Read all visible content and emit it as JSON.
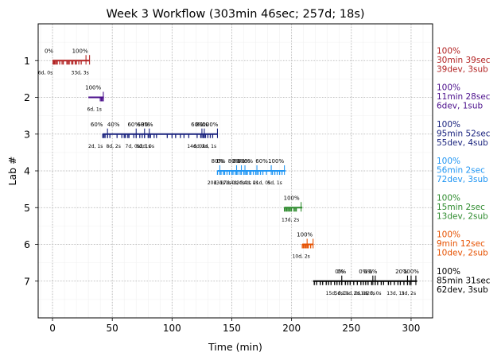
{
  "chart_data": {
    "type": "timeline",
    "title": "Week 3 Workflow (303min 46sec; 257d; 18s)",
    "xlabel": "Time (min)",
    "ylabel": "Lab #",
    "xlim": [
      -12,
      318
    ],
    "ylim": [
      8,
      0
    ],
    "xticks": [
      0,
      50,
      100,
      150,
      200,
      250,
      300
    ],
    "yticks": [
      1,
      2,
      3,
      4,
      5,
      6,
      7
    ],
    "grid": true,
    "labs": [
      {
        "lab": 1,
        "color": "#b22222",
        "start": 0,
        "end": 31,
        "ticks": [
          0.5,
          1.2,
          2,
          3,
          4,
          6,
          8,
          9,
          12,
          13,
          14,
          16,
          17,
          19,
          20,
          22,
          24
        ],
        "submissions": [
          28,
          31
        ],
        "pct_labels": [
          {
            "x": -3,
            "text": "0%"
          },
          {
            "x": 23,
            "text": "100%"
          }
        ],
        "count_labels": [
          {
            "x": -6,
            "text": "6d, 0s"
          },
          {
            "x": 23,
            "text": "33d, 3s"
          }
        ],
        "summary": [
          "100%",
          "30min 39sec",
          "39dev, 3sub"
        ]
      },
      {
        "lab": 2,
        "color": "#4b0f8c",
        "start": 30,
        "end": 43,
        "ticks": [
          40,
          41,
          42
        ],
        "submissions": [
          42.5
        ],
        "pct_labels": [
          {
            "x": 34,
            "text": "100%"
          }
        ],
        "count_labels": [
          {
            "x": 35,
            "text": "6d, 1s"
          }
        ],
        "summary": [
          "100%",
          "11min 28sec",
          "6dev, 1sub"
        ]
      },
      {
        "lab": 3,
        "color": "#1a237e",
        "start": 42,
        "end": 138,
        "ticks": [
          42,
          43,
          44,
          46,
          48,
          54,
          58,
          60,
          61,
          63,
          64,
          68,
          70,
          73,
          75,
          77,
          80,
          82,
          85,
          87,
          96,
          100,
          103,
          107,
          110,
          114,
          121,
          124,
          126,
          127,
          128,
          130,
          132,
          134
        ],
        "submissions": [
          46,
          70,
          77,
          81,
          125,
          127,
          138
        ],
        "pct_labels": [
          {
            "x": 37,
            "text": "60%"
          },
          {
            "x": 51,
            "text": "40%"
          },
          {
            "x": 68,
            "text": "60%"
          },
          {
            "x": 76,
            "text": "60%"
          },
          {
            "x": 79,
            "text": "80%"
          },
          {
            "x": 121,
            "text": "60%"
          },
          {
            "x": 125,
            "text": "80%"
          },
          {
            "x": 132,
            "text": "100%"
          }
        ],
        "count_labels": [
          {
            "x": 36,
            "text": "2d, 1s"
          },
          {
            "x": 51,
            "text": "8d, 2s"
          },
          {
            "x": 67,
            "text": "7d, 0s"
          },
          {
            "x": 76,
            "text": "6d, 1s"
          },
          {
            "x": 79,
            "text": "2d, 0s"
          },
          {
            "x": 120,
            "text": "14d, 0s"
          },
          {
            "x": 124,
            "text": "6d, 1s"
          },
          {
            "x": 131,
            "text": "2d, 1s"
          }
        ],
        "summary": [
          "100%",
          "95min 52sec",
          "55dev, 4sub"
        ]
      },
      {
        "lab": 4,
        "color": "#2196f3",
        "start": 138,
        "end": 195,
        "ticks": [
          138,
          140,
          141,
          143,
          144,
          146,
          148,
          150,
          151,
          153,
          155,
          157,
          160,
          162,
          163,
          165,
          166,
          168,
          170,
          172,
          174,
          176,
          179,
          184,
          186,
          188,
          190,
          192
        ],
        "submissions": [
          140,
          154,
          158,
          161,
          171,
          183,
          194
        ],
        "pct_labels": [
          {
            "x": 138,
            "text": "80%"
          },
          {
            "x": 141,
            "text": "0%"
          },
          {
            "x": 152,
            "text": "80%"
          },
          {
            "x": 156,
            "text": "80%"
          },
          {
            "x": 160,
            "text": "80%"
          },
          {
            "x": 164,
            "text": "0%"
          },
          {
            "x": 175,
            "text": "60%"
          },
          {
            "x": 187,
            "text": "100%"
          }
        ],
        "count_labels": [
          {
            "x": 137,
            "text": "20d, 1s"
          },
          {
            "x": 142,
            "text": "13d, 1s"
          },
          {
            "x": 149,
            "text": "7d, 1s"
          },
          {
            "x": 155,
            "text": "4d, 0s"
          },
          {
            "x": 160,
            "text": "3d, 1s"
          },
          {
            "x": 166,
            "text": "4d, 0s"
          },
          {
            "x": 175,
            "text": "21d, 0s"
          },
          {
            "x": 186,
            "text": "5d, 1s"
          }
        ],
        "summary": [
          "100%",
          "56min 2sec",
          "72dev, 3sub"
        ]
      },
      {
        "lab": 5,
        "color": "#2e8b2e",
        "start": 194,
        "end": 209,
        "ticks": [
          194,
          195,
          196,
          197,
          198,
          199,
          200,
          202,
          203,
          204
        ],
        "submissions": [
          208
        ],
        "pct_labels": [
          {
            "x": 200,
            "text": "100%"
          }
        ],
        "count_labels": [
          {
            "x": 199,
            "text": "13d, 2s"
          }
        ],
        "summary": [
          "100%",
          "15min 2sec",
          "13dev, 2sub"
        ]
      },
      {
        "lab": 6,
        "color": "#e65100",
        "start": 209,
        "end": 218,
        "ticks": [
          209,
          210,
          211,
          212,
          213,
          214,
          216
        ],
        "submissions": [
          213,
          218
        ],
        "pct_labels": [
          {
            "x": 211,
            "text": "100%"
          }
        ],
        "count_labels": [
          {
            "x": 208,
            "text": "10d, 2s"
          }
        ],
        "summary": [
          "100%",
          "9min 12sec",
          "10dev, 2sub"
        ]
      },
      {
        "lab": 7,
        "color": "#000000",
        "start": 218,
        "end": 305,
        "ticks": [
          219,
          221,
          224,
          226,
          229,
          231,
          233,
          236,
          238,
          240,
          242,
          245,
          247,
          249,
          252,
          255,
          258,
          260,
          262,
          264,
          267,
          270,
          272,
          275,
          277,
          281,
          283,
          286,
          289,
          291,
          294,
          297,
          299
        ],
        "submissions": [
          242,
          268,
          270,
          297,
          300,
          304
        ],
        "pct_labels": [
          {
            "x": 240,
            "text": "0%"
          },
          {
            "x": 242,
            "text": "0%"
          },
          {
            "x": 260,
            "text": "0%"
          },
          {
            "x": 264,
            "text": "0%"
          },
          {
            "x": 268,
            "text": "0%"
          },
          {
            "x": 292,
            "text": "20%"
          },
          {
            "x": 300,
            "text": "100%"
          }
        ],
        "count_labels": [
          {
            "x": 236,
            "text": "15d, 0s"
          },
          {
            "x": 242,
            "text": "5d, 0s"
          },
          {
            "x": 250,
            "text": "11d, 0s"
          },
          {
            "x": 258,
            "text": "2d, 0s"
          },
          {
            "x": 264,
            "text": "1d, 0s"
          },
          {
            "x": 269,
            "text": "2d, 0s"
          },
          {
            "x": 287,
            "text": "13d, 1s"
          },
          {
            "x": 298,
            "text": "3d, 2s"
          }
        ],
        "summary": [
          "100%",
          "85min 31sec",
          "62dev, 3sub"
        ]
      }
    ]
  }
}
